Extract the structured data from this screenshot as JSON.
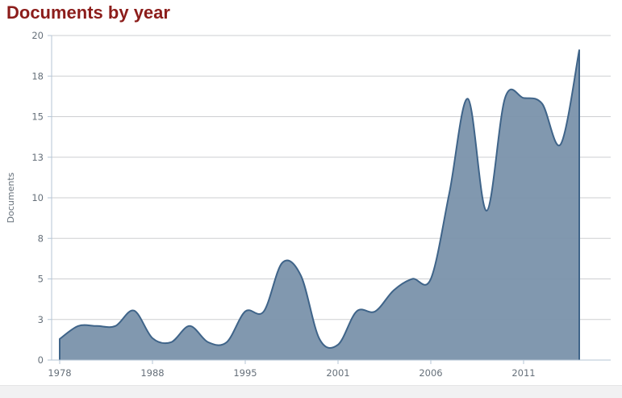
{
  "page": {
    "title": "Documents by year"
  },
  "chart_data": {
    "type": "area",
    "title": "Documents by year",
    "xlabel": "",
    "ylabel": "Documents",
    "ylim": [
      0,
      20
    ],
    "grid": true,
    "legend": "none",
    "smoothing": "spline",
    "y_ticks": [
      {
        "v": 0,
        "label": "0"
      },
      {
        "v": 2.5,
        "label": "3"
      },
      {
        "v": 5,
        "label": "5"
      },
      {
        "v": 7.5,
        "label": "8"
      },
      {
        "v": 10,
        "label": "10"
      },
      {
        "v": 12.5,
        "label": "13"
      },
      {
        "v": 15,
        "label": "15"
      },
      {
        "v": 17.5,
        "label": "18"
      },
      {
        "v": 20,
        "label": "20"
      }
    ],
    "x_ticks": [
      {
        "index": 0,
        "label": "1978"
      },
      {
        "index": 5,
        "label": "1988"
      },
      {
        "index": 10,
        "label": "1995"
      },
      {
        "index": 15,
        "label": "2001"
      },
      {
        "index": 20,
        "label": "2006"
      },
      {
        "index": 25,
        "label": "2011"
      }
    ],
    "series": [
      {
        "name": "Documents",
        "values": [
          1.3,
          2.1,
          2.1,
          2.1,
          3.05,
          1.35,
          1.1,
          2.1,
          1.1,
          1.1,
          3.0,
          3.0,
          6.0,
          5.2,
          1.3,
          0.95,
          3.0,
          3.0,
          4.3,
          5.0,
          5.0,
          10.3,
          16.1,
          9.2,
          16.15,
          16.15,
          15.8,
          13.3,
          19.1
        ]
      }
    ],
    "colors": {
      "fill": "#7A92AB",
      "stroke": "#3F6489",
      "title": "#8C1D1B",
      "labels": "#66707A",
      "grid": "#CDCFD1",
      "axis": "#B5C6D6"
    }
  }
}
